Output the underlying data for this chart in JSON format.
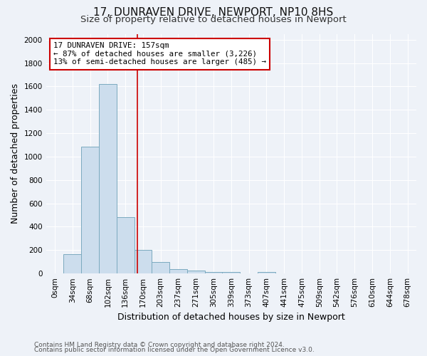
{
  "title": "17, DUNRAVEN DRIVE, NEWPORT, NP10 8HS",
  "subtitle": "Size of property relative to detached houses in Newport",
  "xlabel": "Distribution of detached houses by size in Newport",
  "ylabel": "Number of detached properties",
  "footnote1": "Contains HM Land Registry data © Crown copyright and database right 2024.",
  "footnote2": "Contains public sector information licensed under the Open Government Licence v3.0.",
  "bar_labels": [
    "0sqm",
    "34sqm",
    "68sqm",
    "102sqm",
    "136sqm",
    "170sqm",
    "203sqm",
    "237sqm",
    "271sqm",
    "305sqm",
    "339sqm",
    "373sqm",
    "407sqm",
    "441sqm",
    "475sqm",
    "509sqm",
    "542sqm",
    "576sqm",
    "610sqm",
    "644sqm",
    "678sqm"
  ],
  "bar_values": [
    0,
    165,
    1085,
    1620,
    480,
    200,
    100,
    40,
    25,
    15,
    15,
    0,
    15,
    0,
    0,
    0,
    0,
    0,
    0,
    0,
    0
  ],
  "bar_color": "#ccdded",
  "bar_edge_color": "#7baabf",
  "vline_x": 4.67,
  "vline_color": "#cc0000",
  "annotation_text": "17 DUNRAVEN DRIVE: 157sqm\n← 87% of detached houses are smaller (3,226)\n13% of semi-detached houses are larger (485) →",
  "annotation_box_color": "#ffffff",
  "annotation_box_edge": "#cc0000",
  "ylim": [
    0,
    2050
  ],
  "yticks": [
    0,
    200,
    400,
    600,
    800,
    1000,
    1200,
    1400,
    1600,
    1800,
    2000
  ],
  "bg_color": "#eef2f8",
  "grid_color": "#ffffff",
  "title_fontsize": 11,
  "subtitle_fontsize": 9.5,
  "axis_label_fontsize": 9,
  "tick_fontsize": 7.5,
  "footnote_fontsize": 6.5,
  "annotation_fontsize": 7.8
}
